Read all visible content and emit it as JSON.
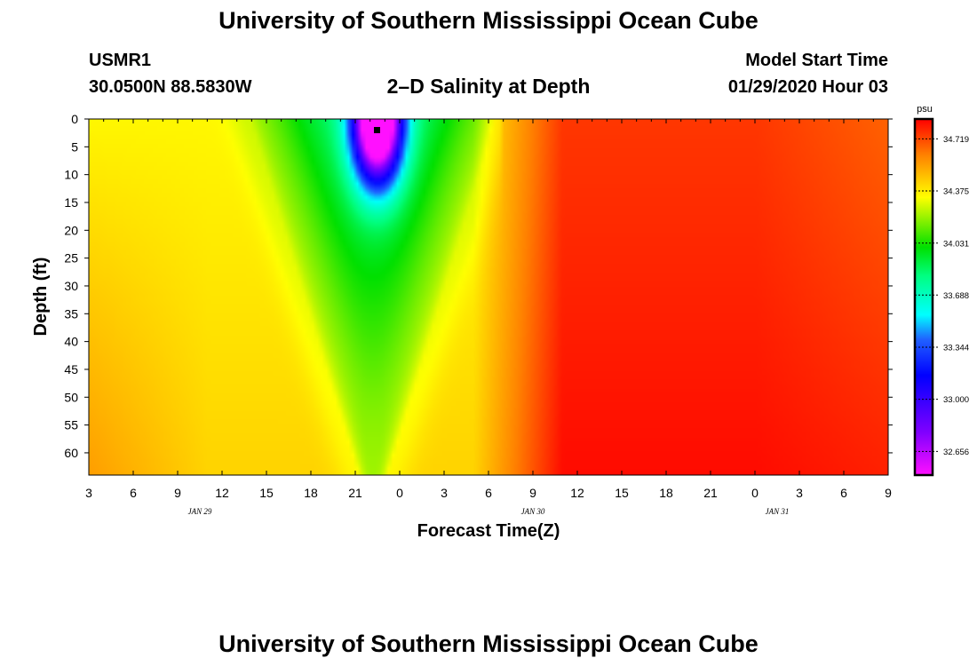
{
  "header": {
    "title": "University of Southern Mississippi Ocean Cube",
    "station": "USMR1",
    "coords": "30.0500N 88.5830W",
    "plot_title": "2–D Salinity at Depth",
    "start_label": "Model Start Time",
    "start_value": "01/29/2020 Hour 03"
  },
  "footer": {
    "title": "University of Southern Mississippi Ocean Cube"
  },
  "chart_data": {
    "type": "heatmap",
    "title": "2–D Salinity at Depth",
    "xlabel": "Forecast Time(Z)",
    "ylabel": "Depth (ft)",
    "x_tick_labels": [
      "3",
      "6",
      "9",
      "12",
      "15",
      "18",
      "21",
      "0",
      "3",
      "6",
      "9",
      "12",
      "15",
      "18",
      "21",
      "0",
      "3",
      "6",
      "9"
    ],
    "x_range_hours": [
      0,
      54
    ],
    "date_labels": [
      {
        "text": "JAN 29",
        "hour": 7.5
      },
      {
        "text": "JAN 30",
        "hour": 30
      },
      {
        "text": "JAN 31",
        "hour": 46.5
      }
    ],
    "y_tick_labels": [
      "0",
      "5",
      "10",
      "15",
      "20",
      "25",
      "30",
      "35",
      "40",
      "45",
      "50",
      "55",
      "60"
    ],
    "y_range": [
      0,
      64
    ],
    "y_inverted": true,
    "colorbar": {
      "unit": "psu",
      "labels": [
        "34.719",
        "34.375",
        "34.031",
        "33.688",
        "33.344",
        "33.000",
        "32.656"
      ],
      "min": 32.5,
      "max": 34.85
    },
    "features": [
      {
        "description_value": "low salinity minimum",
        "hour": 19.5,
        "depth": 2,
        "salinity": 32.55
      },
      {
        "marker": "black square",
        "hour": 19.5,
        "depth": 2
      }
    ],
    "salinity_ranges": {
      "left_region": [
        34.2,
        34.5
      ],
      "center_plume": [
        32.55,
        34.0
      ],
      "right_region": [
        34.65,
        34.8
      ]
    }
  }
}
